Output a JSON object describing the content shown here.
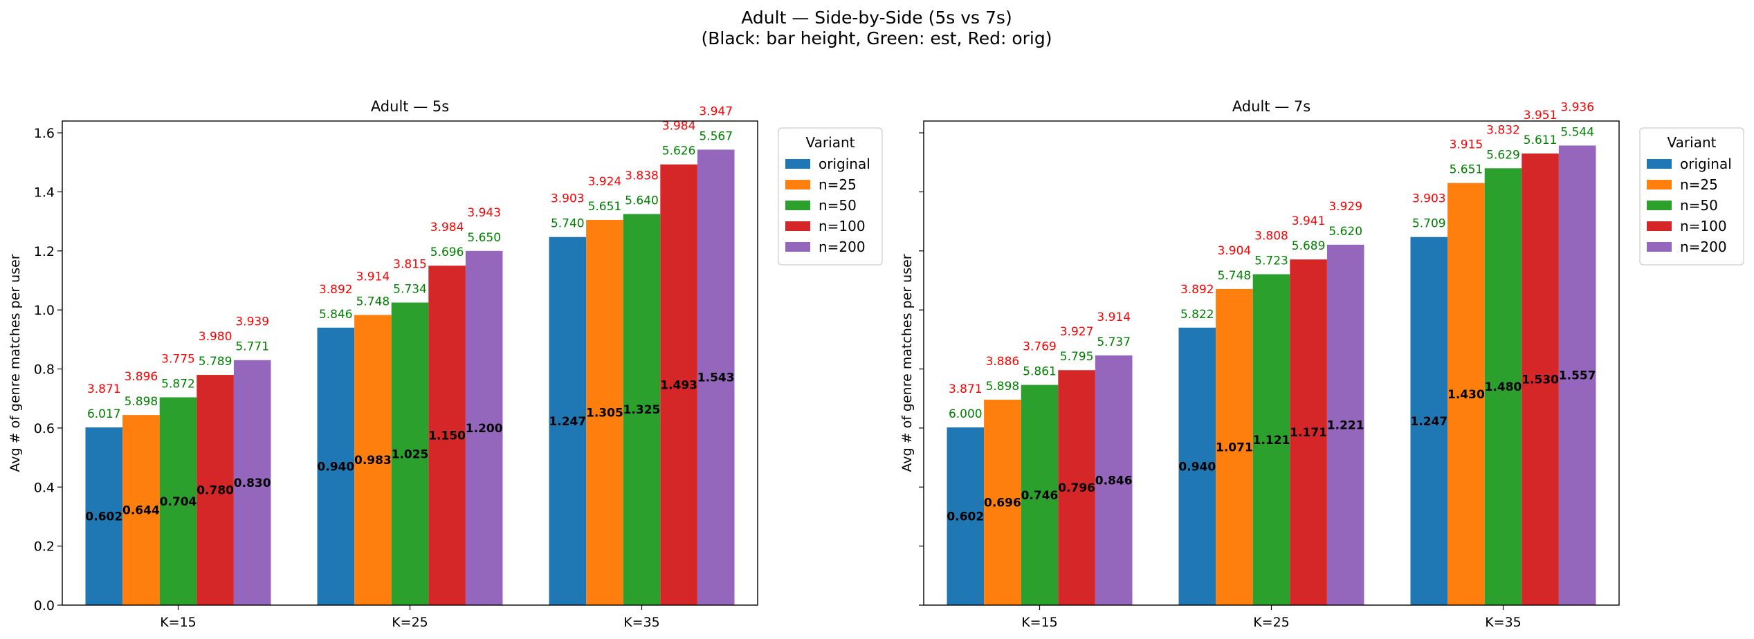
{
  "figure": {
    "title_line1": "Adult — Side-by-Side (5s vs 7s)",
    "title_line2": "(Black: bar height, Green: est, Red: orig)"
  },
  "chart_data": [
    {
      "type": "bar",
      "title": "Adult — 5s",
      "ylabel": "Avg # of genre matches per user",
      "xlabel": "",
      "ylim": [
        0,
        1.64
      ],
      "yticks": [
        "0.0",
        "0.2",
        "0.4",
        "0.6",
        "0.8",
        "1.0",
        "1.2",
        "1.4",
        "1.6"
      ],
      "categories": [
        "K=15",
        "K=25",
        "K=35"
      ],
      "legend": {
        "title": "Variant",
        "placement": "outside-upper-right"
      },
      "series": [
        {
          "name": "original",
          "color": "#1f77b4",
          "values": [
            0.602,
            0.94,
            1.247
          ],
          "labels": [
            "0.602",
            "0.940",
            "1.247"
          ],
          "est": [
            "6.017",
            "5.846",
            "5.740"
          ],
          "orig": [
            "3.871",
            "3.892",
            "3.903"
          ]
        },
        {
          "name": "n=25",
          "color": "#ff7f0e",
          "values": [
            0.644,
            0.983,
            1.305
          ],
          "labels": [
            "0.644",
            "0.983",
            "1.305"
          ],
          "est": [
            "5.898",
            "5.748",
            "5.651"
          ],
          "orig": [
            "3.896",
            "3.914",
            "3.924"
          ]
        },
        {
          "name": "n=50",
          "color": "#2ca02c",
          "values": [
            0.704,
            1.025,
            1.325
          ],
          "labels": [
            "0.704",
            "1.025",
            "1.325"
          ],
          "est": [
            "5.872",
            "5.734",
            "5.640"
          ],
          "orig": [
            "3.775",
            "3.815",
            "3.838"
          ]
        },
        {
          "name": "n=100",
          "color": "#d62728",
          "values": [
            0.78,
            1.15,
            1.493
          ],
          "labels": [
            "0.780",
            "1.150",
            "1.493"
          ],
          "est": [
            "5.789",
            "5.696",
            "5.626"
          ],
          "orig": [
            "3.980",
            "3.984",
            "3.984"
          ]
        },
        {
          "name": "n=200",
          "color": "#9467bd",
          "values": [
            0.83,
            1.2,
            1.543
          ],
          "labels": [
            "0.830",
            "1.200",
            "1.543"
          ],
          "est": [
            "5.771",
            "5.650",
            "5.567"
          ],
          "orig": [
            "3.939",
            "3.943",
            "3.947"
          ]
        }
      ]
    },
    {
      "type": "bar",
      "title": "Adult — 7s",
      "ylabel": "Avg # of genre matches per user",
      "xlabel": "",
      "ylim": [
        0,
        1.64
      ],
      "yticks": [],
      "categories": [
        "K=15",
        "K=25",
        "K=35"
      ],
      "legend": {
        "title": "Variant",
        "placement": "outside-upper-right"
      },
      "series": [
        {
          "name": "original",
          "color": "#1f77b4",
          "values": [
            0.602,
            0.94,
            1.247
          ],
          "labels": [
            "0.602",
            "0.940",
            "1.247"
          ],
          "est": [
            "6.000",
            "5.822",
            "5.709"
          ],
          "orig": [
            "3.871",
            "3.892",
            "3.903"
          ]
        },
        {
          "name": "n=25",
          "color": "#ff7f0e",
          "values": [
            0.696,
            1.071,
            1.43
          ],
          "labels": [
            "0.696",
            "1.071",
            "1.430"
          ],
          "est": [
            "5.898",
            "5.748",
            "5.651"
          ],
          "orig": [
            "3.886",
            "3.904",
            "3.915"
          ]
        },
        {
          "name": "n=50",
          "color": "#2ca02c",
          "values": [
            0.746,
            1.121,
            1.48
          ],
          "labels": [
            "0.746",
            "1.121",
            "1.480"
          ],
          "est": [
            "5.861",
            "5.723",
            "5.629"
          ],
          "orig": [
            "3.769",
            "3.808",
            "3.832"
          ]
        },
        {
          "name": "n=100",
          "color": "#d62728",
          "values": [
            0.796,
            1.171,
            1.53
          ],
          "labels": [
            "0.796",
            "1.171",
            "1.530"
          ],
          "est": [
            "5.795",
            "5.689",
            "5.611"
          ],
          "orig": [
            "3.927",
            "3.941",
            "3.951"
          ]
        },
        {
          "name": "n=200",
          "color": "#9467bd",
          "values": [
            0.846,
            1.221,
            1.557
          ],
          "labels": [
            "0.846",
            "1.221",
            "1.557"
          ],
          "est": [
            "5.737",
            "5.620",
            "5.544"
          ],
          "orig": [
            "3.914",
            "3.929",
            "3.936"
          ]
        }
      ]
    }
  ]
}
